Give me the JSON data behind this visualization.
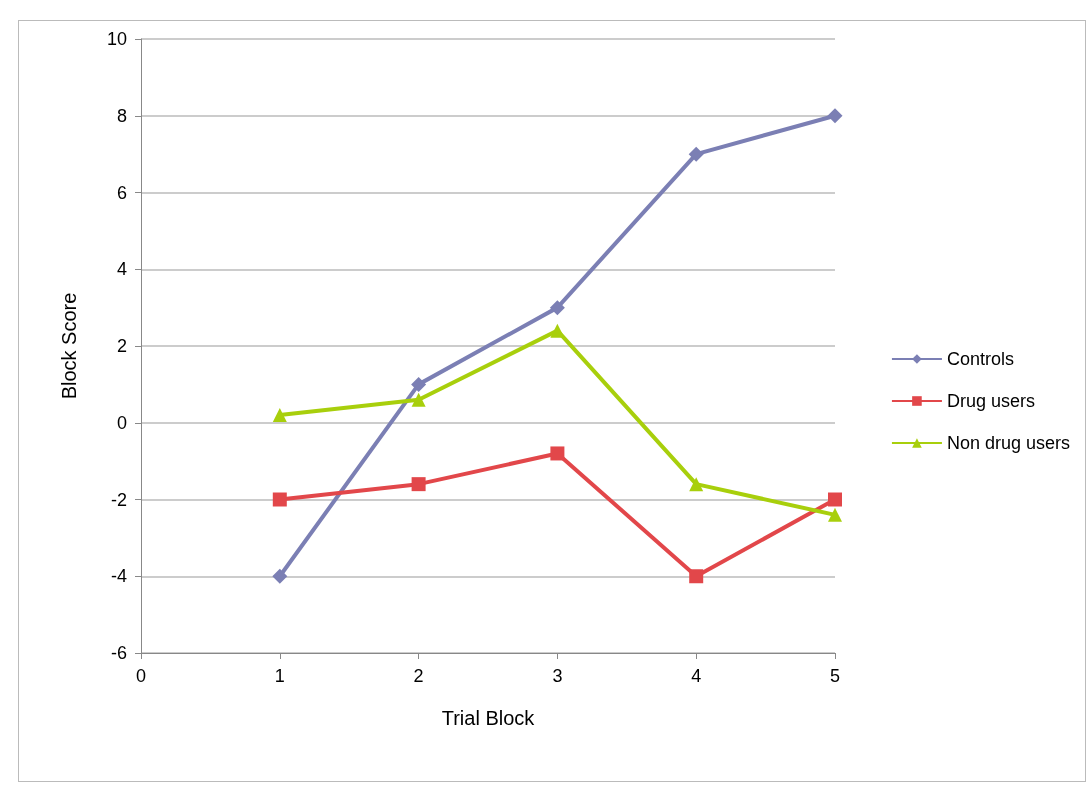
{
  "chart_data": {
    "type": "line",
    "xlabel": "Trial Block",
    "ylabel": "Block Score",
    "x": [
      1,
      2,
      3,
      4,
      5
    ],
    "xlim": [
      0,
      5
    ],
    "xticks": [
      0,
      1,
      2,
      3,
      4,
      5
    ],
    "ylim": [
      -6,
      10
    ],
    "yticks": [
      -6,
      -4,
      -2,
      0,
      2,
      4,
      6,
      8,
      10
    ],
    "grid": "y",
    "legend": "right",
    "series": [
      {
        "name": "Controls",
        "color": "#7b7fb4",
        "marker": "diamond",
        "values": [
          -4,
          1,
          3,
          7,
          8
        ]
      },
      {
        "name": "Drug users",
        "color": "#e2474a",
        "marker": "square",
        "values": [
          -2,
          -1.6,
          -0.8,
          -4,
          -2
        ]
      },
      {
        "name": "Non drug users",
        "color": "#a8cf0c",
        "marker": "triangle",
        "values": [
          0.2,
          0.6,
          2.4,
          -1.6,
          -2.4
        ]
      }
    ]
  }
}
